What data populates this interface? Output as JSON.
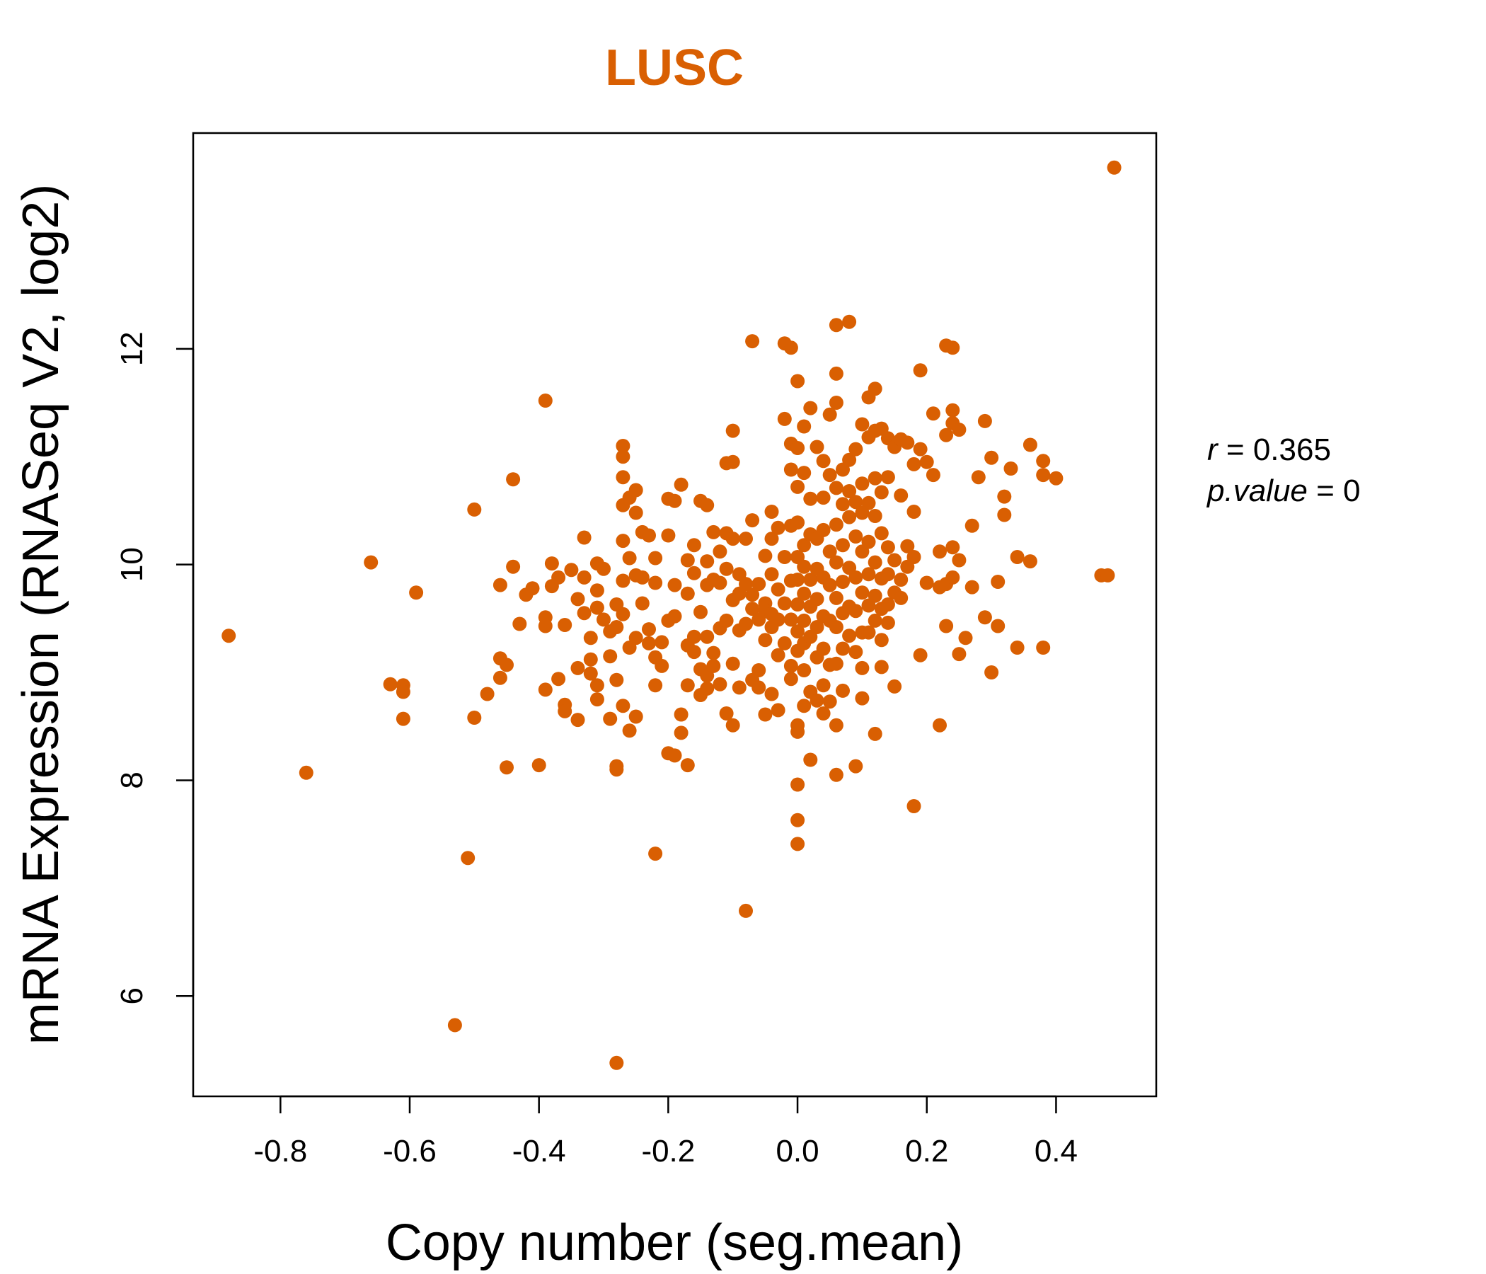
{
  "colors": {
    "points": "#D95F02",
    "title": "#D95F02",
    "axis": "#000000"
  },
  "stats": {
    "r_label": "r",
    "r_value": "0.365",
    "p_label": "p.value",
    "p_value": "0"
  },
  "chart_data": {
    "type": "scatter",
    "title": "LUSC",
    "xlabel": "Copy number (seg.mean)",
    "ylabel": "mRNA Expression (RNASeq V2, log2)",
    "xlim": [
      -0.935,
      0.555
    ],
    "ylim": [
      5.07,
      14.0
    ],
    "xticks": [
      -0.8,
      -0.6,
      -0.4,
      -0.2,
      0.0,
      0.2,
      0.4
    ],
    "xtick_labels": [
      "-0.8",
      "-0.6",
      "-0.4",
      "-0.2",
      "0.0",
      "0.2",
      "0.4"
    ],
    "yticks": [
      6,
      8,
      10,
      12
    ],
    "ytick_labels": [
      "6",
      "8",
      "10",
      "12"
    ],
    "grid": false,
    "points": [
      [
        0.49,
        13.68
      ],
      [
        -0.88,
        9.34
      ],
      [
        -0.76,
        8.07
      ],
      [
        -0.66,
        10.02
      ],
      [
        -0.63,
        8.89
      ],
      [
        -0.61,
        8.88
      ],
      [
        -0.61,
        8.82
      ],
      [
        -0.61,
        8.57
      ],
      [
        -0.59,
        9.74
      ],
      [
        -0.53,
        5.73
      ],
      [
        -0.51,
        7.28
      ],
      [
        -0.5,
        10.51
      ],
      [
        -0.5,
        8.58
      ],
      [
        -0.48,
        8.8
      ],
      [
        -0.46,
        9.81
      ],
      [
        -0.46,
        9.13
      ],
      [
        -0.46,
        8.95
      ],
      [
        -0.45,
        9.07
      ],
      [
        -0.45,
        8.12
      ],
      [
        -0.44,
        10.79
      ],
      [
        -0.44,
        9.98
      ],
      [
        -0.43,
        9.45
      ],
      [
        -0.42,
        9.72
      ],
      [
        -0.41,
        9.78
      ],
      [
        -0.4,
        8.14
      ],
      [
        -0.39,
        11.52
      ],
      [
        -0.39,
        9.51
      ],
      [
        -0.39,
        9.43
      ],
      [
        -0.39,
        8.84
      ],
      [
        -0.38,
        10.01
      ],
      [
        -0.38,
        9.8
      ],
      [
        -0.37,
        9.88
      ],
      [
        -0.37,
        8.94
      ],
      [
        -0.36,
        8.7
      ],
      [
        -0.36,
        8.64
      ],
      [
        -0.36,
        9.44
      ],
      [
        -0.35,
        9.95
      ],
      [
        -0.34,
        9.68
      ],
      [
        -0.34,
        8.56
      ],
      [
        -0.34,
        9.04
      ],
      [
        -0.33,
        10.25
      ],
      [
        -0.33,
        9.88
      ],
      [
        -0.33,
        9.55
      ],
      [
        -0.32,
        9.32
      ],
      [
        -0.32,
        9.12
      ],
      [
        -0.32,
        8.99
      ],
      [
        -0.31,
        10.01
      ],
      [
        -0.31,
        9.76
      ],
      [
        -0.31,
        9.6
      ],
      [
        -0.31,
        8.75
      ],
      [
        -0.31,
        8.88
      ],
      [
        -0.3,
        9.96
      ],
      [
        -0.3,
        9.49
      ],
      [
        -0.29,
        9.38
      ],
      [
        -0.29,
        9.15
      ],
      [
        -0.29,
        8.57
      ],
      [
        -0.28,
        9.63
      ],
      [
        -0.28,
        9.42
      ],
      [
        -0.28,
        8.93
      ],
      [
        -0.28,
        8.13
      ],
      [
        -0.28,
        8.1
      ],
      [
        -0.28,
        5.38
      ],
      [
        -0.27,
        11.1
      ],
      [
        -0.27,
        11.0
      ],
      [
        -0.27,
        10.81
      ],
      [
        -0.27,
        10.55
      ],
      [
        -0.27,
        10.22
      ],
      [
        -0.27,
        9.85
      ],
      [
        -0.27,
        9.54
      ],
      [
        -0.27,
        8.69
      ],
      [
        -0.26,
        10.62
      ],
      [
        -0.26,
        10.06
      ],
      [
        -0.26,
        9.23
      ],
      [
        -0.26,
        8.46
      ],
      [
        -0.25,
        10.69
      ],
      [
        -0.25,
        10.48
      ],
      [
        -0.25,
        9.9
      ],
      [
        -0.25,
        9.32
      ],
      [
        -0.25,
        8.59
      ],
      [
        -0.24,
        10.3
      ],
      [
        -0.24,
        9.64
      ],
      [
        -0.24,
        9.88
      ],
      [
        -0.23,
        10.27
      ],
      [
        -0.23,
        9.4
      ],
      [
        -0.23,
        9.27
      ],
      [
        -0.22,
        10.06
      ],
      [
        -0.22,
        9.83
      ],
      [
        -0.22,
        9.14
      ],
      [
        -0.22,
        8.88
      ],
      [
        -0.22,
        7.32
      ],
      [
        -0.21,
        9.28
      ],
      [
        -0.21,
        9.06
      ],
      [
        -0.2,
        10.61
      ],
      [
        -0.2,
        10.27
      ],
      [
        -0.2,
        9.48
      ],
      [
        -0.2,
        8.25
      ],
      [
        -0.19,
        10.59
      ],
      [
        -0.19,
        9.81
      ],
      [
        -0.19,
        9.52
      ],
      [
        -0.19,
        8.23
      ],
      [
        -0.18,
        10.74
      ],
      [
        -0.18,
        8.61
      ],
      [
        -0.18,
        8.44
      ],
      [
        -0.17,
        10.04
      ],
      [
        -0.17,
        9.73
      ],
      [
        -0.17,
        9.25
      ],
      [
        -0.17,
        8.88
      ],
      [
        -0.17,
        8.14
      ],
      [
        -0.16,
        10.18
      ],
      [
        -0.16,
        9.92
      ],
      [
        -0.16,
        9.33
      ],
      [
        -0.16,
        9.19
      ],
      [
        -0.15,
        10.59
      ],
      [
        -0.15,
        9.56
      ],
      [
        -0.15,
        9.03
      ],
      [
        -0.15,
        8.79
      ],
      [
        -0.14,
        10.55
      ],
      [
        -0.14,
        10.03
      ],
      [
        -0.14,
        9.81
      ],
      [
        -0.14,
        9.33
      ],
      [
        -0.14,
        8.97
      ],
      [
        -0.14,
        8.85
      ],
      [
        -0.13,
        10.3
      ],
      [
        -0.13,
        9.86
      ],
      [
        -0.13,
        9.18
      ],
      [
        -0.13,
        9.06
      ],
      [
        -0.12,
        10.12
      ],
      [
        -0.12,
        9.83
      ],
      [
        -0.12,
        9.41
      ],
      [
        -0.12,
        8.89
      ],
      [
        -0.11,
        10.94
      ],
      [
        -0.11,
        10.29
      ],
      [
        -0.11,
        9.96
      ],
      [
        -0.11,
        9.48
      ],
      [
        -0.11,
        8.62
      ],
      [
        -0.1,
        11.24
      ],
      [
        -0.1,
        10.95
      ],
      [
        -0.1,
        10.24
      ],
      [
        -0.1,
        9.67
      ],
      [
        -0.1,
        9.08
      ],
      [
        -0.1,
        8.51
      ],
      [
        -0.09,
        9.91
      ],
      [
        -0.09,
        9.73
      ],
      [
        -0.09,
        9.39
      ],
      [
        -0.09,
        8.86
      ],
      [
        -0.08,
        10.24
      ],
      [
        -0.08,
        9.82
      ],
      [
        -0.08,
        9.45
      ],
      [
        -0.08,
        6.79
      ],
      [
        -0.07,
        12.07
      ],
      [
        -0.07,
        10.41
      ],
      [
        -0.07,
        9.72
      ],
      [
        -0.07,
        9.59
      ],
      [
        -0.07,
        8.93
      ],
      [
        -0.06,
        9.82
      ],
      [
        -0.06,
        9.49
      ],
      [
        -0.06,
        9.02
      ],
      [
        -0.06,
        8.86
      ],
      [
        -0.05,
        10.08
      ],
      [
        -0.05,
        9.64
      ],
      [
        -0.05,
        9.57
      ],
      [
        -0.05,
        9.3
      ],
      [
        -0.05,
        8.61
      ],
      [
        -0.04,
        10.49
      ],
      [
        -0.04,
        10.24
      ],
      [
        -0.04,
        9.91
      ],
      [
        -0.04,
        9.54
      ],
      [
        -0.04,
        9.42
      ],
      [
        -0.04,
        8.8
      ],
      [
        -0.03,
        10.34
      ],
      [
        -0.03,
        9.77
      ],
      [
        -0.03,
        9.49
      ],
      [
        -0.03,
        9.16
      ],
      [
        -0.03,
        8.65
      ],
      [
        -0.02,
        12.05
      ],
      [
        -0.02,
        11.35
      ],
      [
        -0.02,
        10.07
      ],
      [
        -0.02,
        9.64
      ],
      [
        -0.02,
        9.27
      ],
      [
        -0.01,
        12.01
      ],
      [
        -0.01,
        11.12
      ],
      [
        -0.01,
        10.88
      ],
      [
        -0.01,
        10.36
      ],
      [
        -0.01,
        9.85
      ],
      [
        -0.01,
        9.49
      ],
      [
        -0.01,
        9.06
      ],
      [
        -0.01,
        8.94
      ],
      [
        0.0,
        11.7
      ],
      [
        0.0,
        11.08
      ],
      [
        0.0,
        10.72
      ],
      [
        0.0,
        10.39
      ],
      [
        0.0,
        10.07
      ],
      [
        0.0,
        9.86
      ],
      [
        0.0,
        9.63
      ],
      [
        0.0,
        9.38
      ],
      [
        0.0,
        9.2
      ],
      [
        0.0,
        8.51
      ],
      [
        0.0,
        8.45
      ],
      [
        0.0,
        7.96
      ],
      [
        0.0,
        7.63
      ],
      [
        0.0,
        7.41
      ],
      [
        0.01,
        11.28
      ],
      [
        0.01,
        10.85
      ],
      [
        0.01,
        10.18
      ],
      [
        0.01,
        9.98
      ],
      [
        0.01,
        9.73
      ],
      [
        0.01,
        9.48
      ],
      [
        0.01,
        9.27
      ],
      [
        0.01,
        9.02
      ],
      [
        0.01,
        8.69
      ],
      [
        0.02,
        11.45
      ],
      [
        0.02,
        10.61
      ],
      [
        0.02,
        10.28
      ],
      [
        0.02,
        9.86
      ],
      [
        0.02,
        9.61
      ],
      [
        0.02,
        9.33
      ],
      [
        0.02,
        8.82
      ],
      [
        0.02,
        8.19
      ],
      [
        0.03,
        11.09
      ],
      [
        0.03,
        10.24
      ],
      [
        0.03,
        9.96
      ],
      [
        0.03,
        9.68
      ],
      [
        0.03,
        9.42
      ],
      [
        0.03,
        9.14
      ],
      [
        0.03,
        8.74
      ],
      [
        0.04,
        10.96
      ],
      [
        0.04,
        10.62
      ],
      [
        0.04,
        10.32
      ],
      [
        0.04,
        9.88
      ],
      [
        0.04,
        9.52
      ],
      [
        0.04,
        9.22
      ],
      [
        0.04,
        8.88
      ],
      [
        0.04,
        8.62
      ],
      [
        0.05,
        11.39
      ],
      [
        0.05,
        10.83
      ],
      [
        0.05,
        10.12
      ],
      [
        0.05,
        9.81
      ],
      [
        0.05,
        9.48
      ],
      [
        0.05,
        9.07
      ],
      [
        0.05,
        8.73
      ],
      [
        0.06,
        12.22
      ],
      [
        0.06,
        11.77
      ],
      [
        0.06,
        11.5
      ],
      [
        0.06,
        10.71
      ],
      [
        0.06,
        10.37
      ],
      [
        0.06,
        10.02
      ],
      [
        0.06,
        9.69
      ],
      [
        0.06,
        9.42
      ],
      [
        0.06,
        9.08
      ],
      [
        0.06,
        8.51
      ],
      [
        0.06,
        8.05
      ],
      [
        0.07,
        10.88
      ],
      [
        0.07,
        10.56
      ],
      [
        0.07,
        10.18
      ],
      [
        0.07,
        9.84
      ],
      [
        0.07,
        9.55
      ],
      [
        0.07,
        9.22
      ],
      [
        0.07,
        8.83
      ],
      [
        0.08,
        12.25
      ],
      [
        0.08,
        10.97
      ],
      [
        0.08,
        10.68
      ],
      [
        0.08,
        10.44
      ],
      [
        0.08,
        9.97
      ],
      [
        0.08,
        9.61
      ],
      [
        0.08,
        9.34
      ],
      [
        0.09,
        11.07
      ],
      [
        0.09,
        10.58
      ],
      [
        0.09,
        10.26
      ],
      [
        0.09,
        9.88
      ],
      [
        0.09,
        9.57
      ],
      [
        0.09,
        9.19
      ],
      [
        0.09,
        8.13
      ],
      [
        0.1,
        11.3
      ],
      [
        0.1,
        10.75
      ],
      [
        0.1,
        10.48
      ],
      [
        0.1,
        10.12
      ],
      [
        0.1,
        9.74
      ],
      [
        0.1,
        9.37
      ],
      [
        0.1,
        9.04
      ],
      [
        0.1,
        8.76
      ],
      [
        0.11,
        11.55
      ],
      [
        0.11,
        11.18
      ],
      [
        0.11,
        10.57
      ],
      [
        0.11,
        10.21
      ],
      [
        0.11,
        9.91
      ],
      [
        0.11,
        9.62
      ],
      [
        0.11,
        9.37
      ],
      [
        0.12,
        11.63
      ],
      [
        0.12,
        11.24
      ],
      [
        0.12,
        10.8
      ],
      [
        0.12,
        10.45
      ],
      [
        0.12,
        10.02
      ],
      [
        0.12,
        9.71
      ],
      [
        0.12,
        9.48
      ],
      [
        0.12,
        8.43
      ],
      [
        0.13,
        11.26
      ],
      [
        0.13,
        10.67
      ],
      [
        0.13,
        10.29
      ],
      [
        0.13,
        9.87
      ],
      [
        0.13,
        9.59
      ],
      [
        0.13,
        9.3
      ],
      [
        0.13,
        9.05
      ],
      [
        0.14,
        11.17
      ],
      [
        0.14,
        10.81
      ],
      [
        0.14,
        10.16
      ],
      [
        0.14,
        9.91
      ],
      [
        0.14,
        9.63
      ],
      [
        0.14,
        9.46
      ],
      [
        0.15,
        11.09
      ],
      [
        0.15,
        10.04
      ],
      [
        0.15,
        9.74
      ],
      [
        0.15,
        8.87
      ],
      [
        0.16,
        11.16
      ],
      [
        0.16,
        10.64
      ],
      [
        0.16,
        9.86
      ],
      [
        0.16,
        9.69
      ],
      [
        0.17,
        11.13
      ],
      [
        0.17,
        10.17
      ],
      [
        0.17,
        9.98
      ],
      [
        0.18,
        10.93
      ],
      [
        0.18,
        10.49
      ],
      [
        0.18,
        10.07
      ],
      [
        0.18,
        7.76
      ],
      [
        0.19,
        11.8
      ],
      [
        0.19,
        11.07
      ],
      [
        0.19,
        9.16
      ],
      [
        0.2,
        10.95
      ],
      [
        0.2,
        9.83
      ],
      [
        0.21,
        11.4
      ],
      [
        0.21,
        10.83
      ],
      [
        0.22,
        10.12
      ],
      [
        0.22,
        9.79
      ],
      [
        0.22,
        8.51
      ],
      [
        0.23,
        12.03
      ],
      [
        0.23,
        11.2
      ],
      [
        0.23,
        9.82
      ],
      [
        0.23,
        9.43
      ],
      [
        0.24,
        12.01
      ],
      [
        0.24,
        11.43
      ],
      [
        0.24,
        11.31
      ],
      [
        0.24,
        10.16
      ],
      [
        0.24,
        9.88
      ],
      [
        0.25,
        11.25
      ],
      [
        0.25,
        10.04
      ],
      [
        0.25,
        9.17
      ],
      [
        0.26,
        9.32
      ],
      [
        0.27,
        10.36
      ],
      [
        0.27,
        9.79
      ],
      [
        0.28,
        10.81
      ],
      [
        0.29,
        11.33
      ],
      [
        0.29,
        9.51
      ],
      [
        0.3,
        10.99
      ],
      [
        0.3,
        9.0
      ],
      [
        0.31,
        9.84
      ],
      [
        0.31,
        9.43
      ],
      [
        0.32,
        10.63
      ],
      [
        0.32,
        10.46
      ],
      [
        0.33,
        10.89
      ],
      [
        0.34,
        10.07
      ],
      [
        0.34,
        9.23
      ],
      [
        0.36,
        11.11
      ],
      [
        0.36,
        10.03
      ],
      [
        0.38,
        10.96
      ],
      [
        0.38,
        10.83
      ],
      [
        0.38,
        9.23
      ],
      [
        0.4,
        10.8
      ],
      [
        0.47,
        9.9
      ],
      [
        0.48,
        9.9
      ]
    ]
  }
}
